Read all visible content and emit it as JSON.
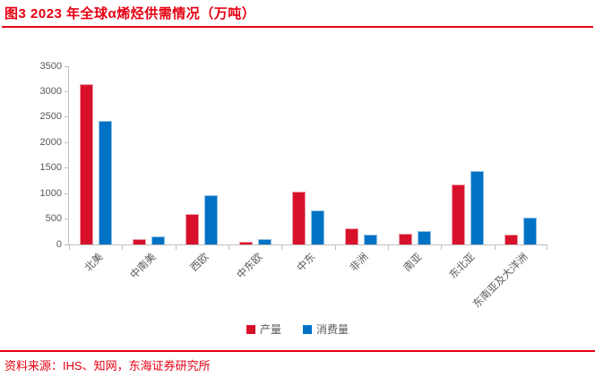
{
  "header": {
    "title": "图3  2023 年全球α烯烃供需情况（万吨）"
  },
  "chart_data": {
    "type": "bar",
    "title": "2023 年全球α烯烃供需情况（万吨）",
    "unit": "万吨",
    "categories": [
      "北美",
      "中南美",
      "西欧",
      "中东欧",
      "中东",
      "非洲",
      "南亚",
      "东北亚",
      "东南亚及大洋洲"
    ],
    "series": [
      {
        "name": "产量",
        "color": "#d8112b",
        "border": "#ef9aa6",
        "values": [
          3150,
          100,
          600,
          60,
          1030,
          320,
          210,
          1170,
          200
        ]
      },
      {
        "name": "消费量",
        "color": "#0072c6",
        "border": "#8fc0e4",
        "values": [
          2420,
          160,
          960,
          110,
          670,
          190,
          270,
          1450,
          530
        ]
      }
    ],
    "ylim": [
      0,
      3500
    ],
    "yticks": [
      0,
      500,
      1000,
      1500,
      2000,
      2500,
      3000,
      3500
    ],
    "grid": false,
    "legend_position": "bottom"
  },
  "footer": {
    "source": "资料来源：IHS、知网，东海证券研究所"
  },
  "colors": {
    "accent_red": "#e60012",
    "axis_gray": "#bfbfbf",
    "label_gray": "#595959"
  }
}
